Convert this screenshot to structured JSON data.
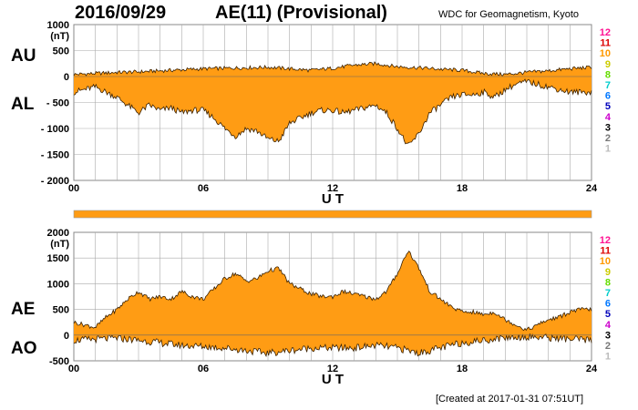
{
  "header": {
    "date": "2016/09/29",
    "title": "AE(11) (Provisional)",
    "credit": "WDC for Geomagnetism, Kyoto"
  },
  "footer": {
    "created": "[Created at 2017-01-31 07:51UT]"
  },
  "colors": {
    "fill": "#ff9c14",
    "line": "#3a2000",
    "grid": "#aaaaaa",
    "bar": "#ff9c14"
  },
  "month_scale": {
    "labels": [
      "12",
      "11",
      "10",
      "9",
      "8",
      "7",
      "6",
      "5",
      "4",
      "3",
      "2",
      "1"
    ],
    "colors": [
      "#ff1493",
      "#dd0000",
      "#ff9900",
      "#cccc00",
      "#66dd00",
      "#00cccc",
      "#0077ff",
      "#0000bb",
      "#cc00cc",
      "#000000",
      "#777777",
      "#bbbbbb"
    ]
  },
  "chart_data": [
    {
      "type": "area",
      "panel": "top",
      "ylabel_left_top": "AU",
      "ylabel_left_bottom": "AL",
      "unit": "(nT)",
      "xlabel": "U T",
      "x_ticks": [
        "00",
        "06",
        "12",
        "18",
        "24"
      ],
      "y_ticks": [
        "1000",
        "500",
        "0",
        "- 500",
        "- 1000",
        "- 1500",
        "- 2000"
      ],
      "xlim": [
        0,
        24
      ],
      "ylim": [
        -2000,
        1000
      ],
      "series": [
        {
          "name": "AU",
          "x": [
            0,
            1,
            2,
            3,
            4,
            5,
            6,
            7,
            8,
            9,
            10,
            11,
            12,
            13,
            14,
            15,
            16,
            17,
            18,
            19,
            20,
            21,
            22,
            23,
            24
          ],
          "values": [
            40,
            60,
            80,
            90,
            110,
            130,
            150,
            160,
            170,
            180,
            150,
            120,
            160,
            220,
            250,
            190,
            170,
            140,
            120,
            60,
            40,
            80,
            110,
            150,
            180
          ]
        },
        {
          "name": "AL",
          "x": [
            0,
            0.5,
            1,
            1.5,
            2,
            2.5,
            3,
            3.5,
            4,
            4.5,
            5,
            5.5,
            6,
            6.5,
            7,
            7.5,
            8,
            8.5,
            9,
            9.5,
            10,
            10.5,
            11,
            11.5,
            12,
            12.5,
            13,
            13.5,
            14,
            14.5,
            15,
            15.5,
            16,
            16.5,
            17,
            17.5,
            18,
            18.5,
            19,
            19.5,
            20,
            20.5,
            21,
            21.5,
            22,
            22.5,
            23,
            23.5,
            24
          ],
          "values": [
            -300,
            -250,
            -200,
            -300,
            -400,
            -550,
            -700,
            -550,
            -650,
            -600,
            -700,
            -650,
            -650,
            -800,
            -1000,
            -1150,
            -1000,
            -1050,
            -1200,
            -1250,
            -900,
            -800,
            -700,
            -650,
            -650,
            -700,
            -650,
            -600,
            -550,
            -700,
            -1000,
            -1350,
            -1100,
            -700,
            -550,
            -400,
            -350,
            -350,
            -300,
            -400,
            -250,
            -150,
            -100,
            -150,
            -200,
            -250,
            -300,
            -300,
            -300
          ]
        }
      ]
    },
    {
      "type": "area",
      "panel": "bottom",
      "ylabel_left_top": "AE",
      "ylabel_left_bottom": "AO",
      "unit": "(nT)",
      "xlabel": "U T",
      "x_ticks": [
        "00",
        "06",
        "12",
        "18",
        "24"
      ],
      "y_ticks": [
        "2000",
        "1500",
        "1000",
        "500",
        "0",
        "-500"
      ],
      "xlim": [
        0,
        24
      ],
      "ylim": [
        -500,
        2000
      ],
      "series": [
        {
          "name": "AE",
          "x": [
            0,
            0.5,
            1,
            1.5,
            2,
            2.5,
            3,
            3.5,
            4,
            4.5,
            5,
            5.5,
            6,
            6.5,
            7,
            7.5,
            8,
            8.5,
            9,
            9.5,
            10,
            10.5,
            11,
            11.5,
            12,
            12.5,
            13,
            13.5,
            14,
            14.5,
            15,
            15.5,
            16,
            16.5,
            17,
            17.5,
            18,
            18.5,
            19,
            19.5,
            20,
            20.5,
            21,
            21.5,
            22,
            22.5,
            23,
            23.5,
            24
          ],
          "values": [
            250,
            200,
            150,
            350,
            500,
            700,
            850,
            700,
            750,
            700,
            850,
            750,
            700,
            900,
            1100,
            1200,
            1050,
            1100,
            1250,
            1300,
            1000,
            900,
            800,
            750,
            750,
            850,
            800,
            750,
            700,
            850,
            1200,
            1650,
            1300,
            850,
            700,
            550,
            450,
            450,
            400,
            450,
            300,
            200,
            100,
            200,
            300,
            350,
            450,
            500,
            500
          ]
        },
        {
          "name": "AO",
          "x": [
            0,
            1,
            2,
            3,
            4,
            5,
            6,
            7,
            8,
            9,
            10,
            11,
            12,
            13,
            14,
            15,
            16,
            17,
            18,
            19,
            20,
            21,
            22,
            23,
            24
          ],
          "values": [
            -100,
            -80,
            -60,
            -100,
            -150,
            -200,
            -220,
            -250,
            -300,
            -350,
            -300,
            -250,
            -250,
            -250,
            -200,
            -250,
            -350,
            -250,
            -150,
            -100,
            -50,
            -30,
            -50,
            -80,
            -100
          ]
        }
      ]
    }
  ]
}
